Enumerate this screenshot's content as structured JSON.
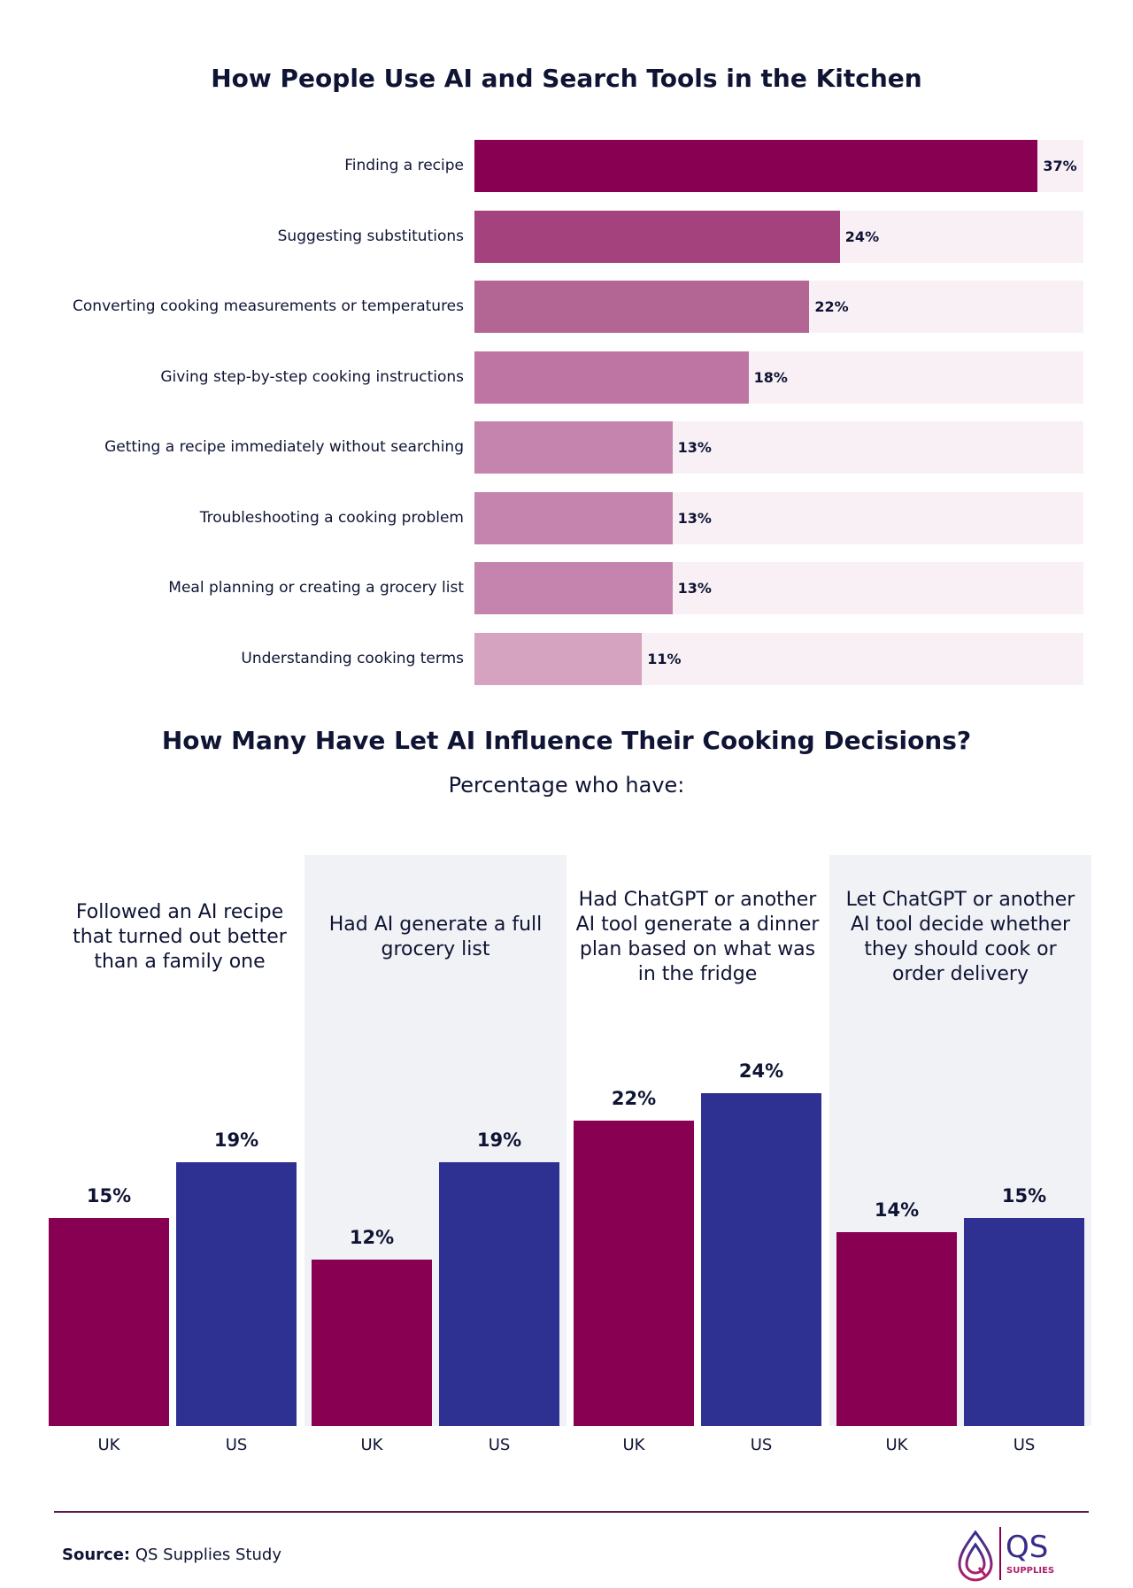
{
  "chart_data": [
    {
      "type": "bar",
      "orientation": "horizontal",
      "title": "How People Use AI and Search Tools in the Kitchen",
      "categories": [
        "Finding a recipe",
        "Suggesting substitutions",
        "Converting cooking measurements or temperatures",
        "Giving step-by-step cooking instructions",
        "Getting a recipe immediately without searching",
        "Troubleshooting a cooking problem",
        "Meal planning or creating a grocery list",
        "Understanding cooking terms"
      ],
      "values": [
        37,
        24,
        22,
        18,
        13,
        13,
        13,
        11
      ],
      "labels": [
        "37%",
        "24%",
        "22%",
        "18%",
        "13%",
        "13%",
        "13%",
        "11%"
      ],
      "colors": [
        "#870052",
        "#a4427e",
        "#b36593",
        "#bf75a3",
        "#c584ad",
        "#c584ad",
        "#c584ad",
        "#d5a2c0"
      ],
      "track_color": "#f8f0f5",
      "xlim": [
        0,
        40
      ]
    },
    {
      "type": "bar",
      "orientation": "vertical",
      "title": "How Many Have Let AI Influence Their Cooking Decisions?",
      "subtitle": "Percentage who have:",
      "groups": [
        "Followed an AI recipe that turned out better than a family one",
        "Had AI generate a full grocery list",
        "Had ChatGPT or another AI tool generate a dinner plan based on what was in the fridge",
        "Let ChatGPT or another AI tool decide whether they should cook or order delivery"
      ],
      "series": [
        {
          "name": "UK",
          "values": [
            15,
            12,
            22,
            14
          ],
          "labels": [
            "15%",
            "12%",
            "22%",
            "14%"
          ],
          "color": "#870052"
        },
        {
          "name": "US",
          "values": [
            19,
            19,
            24,
            15
          ],
          "labels": [
            "19%",
            "19%",
            "24%",
            "15%"
          ],
          "color": "#2e3192"
        }
      ],
      "ylim": [
        0,
        24
      ]
    }
  ],
  "footer": {
    "source_label": "Source:",
    "source_text": "QS Supplies Study",
    "logo_text": "QS",
    "logo_sub": "SUPPLIES"
  }
}
